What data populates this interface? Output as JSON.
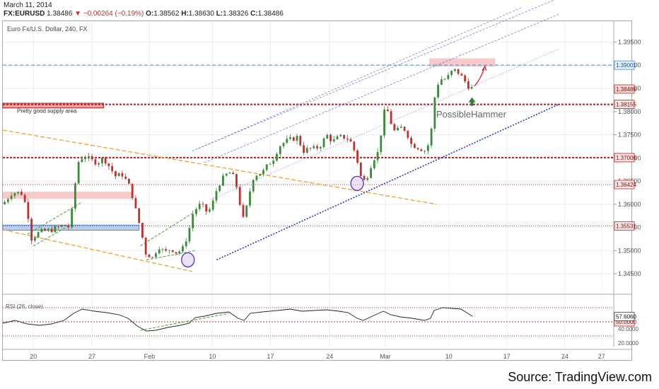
{
  "header": {
    "date": "March 11, 2014",
    "symbol": "FX:EURUSD",
    "last": "1.38486",
    "change": "▼ −0.00264 (−0.19%)",
    "o_label": "O:",
    "o": "1.38562",
    "h_label": "H:",
    "h": "1.38630",
    "l_label": "L:",
    "l": "1.38326",
    "c_label": "C:",
    "c": "1.38486"
  },
  "chart_title": "Euro Fx/U.S. Dollar, 240, FX",
  "source_label": "Source: ",
  "source_site": "TradingView.com",
  "colors": {
    "up": "#3a8a3a",
    "down": "#c0312b",
    "resistance": "#b71c1c",
    "blue_level": "#3f87d9",
    "trend_orange": "#f0a030",
    "trend_blue": "#2a35c4",
    "channel": "#6a6ae0",
    "grid": "#eeeeee"
  },
  "chart_data": {
    "type": "candlestick",
    "ylim": [
      1.3415,
      1.3995
    ],
    "xlim": [
      0,
      100
    ],
    "y_ticks": [
      1.345,
      1.35,
      1.355,
      1.36,
      1.365,
      1.37,
      1.375,
      1.38,
      1.385,
      1.39,
      1.395
    ],
    "y_tick_labels": [
      "1.34500",
      "1.35000",
      "1.35500",
      "1.36000",
      "1.36500",
      "1.37000",
      "1.37500",
      "1.38000",
      "1.38500",
      "1.39000",
      "1.39500"
    ],
    "x_ticks": [
      {
        "label": "20",
        "x": 5.0
      },
      {
        "label": "27",
        "x": 14.6
      },
      {
        "label": "Feb",
        "x": 24.0
      },
      {
        "label": "10",
        "x": 34.3
      },
      {
        "label": "17",
        "x": 43.8
      },
      {
        "label": "24",
        "x": 53.5
      },
      {
        "label": "Mar",
        "x": 62.6
      },
      {
        "label": "10",
        "x": 73.0
      },
      {
        "label": "17",
        "x": 82.5
      },
      {
        "label": "24",
        "x": 92.0
      },
      {
        "label": "27",
        "x": 98.0
      }
    ],
    "close_path": [
      [
        0.0,
        1.36
      ],
      [
        1.5,
        1.3625
      ],
      [
        3.0,
        1.3625
      ],
      [
        4.0,
        1.359
      ],
      [
        4.6,
        1.3525
      ],
      [
        6.0,
        1.354
      ],
      [
        8.0,
        1.3545
      ],
      [
        10.0,
        1.3555
      ],
      [
        11.0,
        1.355
      ],
      [
        11.6,
        1.362
      ],
      [
        12.3,
        1.369
      ],
      [
        13.2,
        1.3705
      ],
      [
        14.4,
        1.3695
      ],
      [
        15.5,
        1.369
      ],
      [
        16.5,
        1.37
      ],
      [
        17.5,
        1.368
      ],
      [
        18.5,
        1.366
      ],
      [
        19.5,
        1.3665
      ],
      [
        20.5,
        1.3645
      ],
      [
        21.0,
        1.363
      ],
      [
        21.6,
        1.3595
      ],
      [
        22.4,
        1.3555
      ],
      [
        23.4,
        1.3495
      ],
      [
        24.5,
        1.3485
      ],
      [
        25.5,
        1.351
      ],
      [
        26.5,
        1.3495
      ],
      [
        27.5,
        1.3505
      ],
      [
        28.5,
        1.3495
      ],
      [
        29.5,
        1.3505
      ],
      [
        30.4,
        1.354
      ],
      [
        31.2,
        1.3585
      ],
      [
        32.4,
        1.36
      ],
      [
        33.6,
        1.358
      ],
      [
        34.4,
        1.3605
      ],
      [
        35.2,
        1.364
      ],
      [
        36.0,
        1.3655
      ],
      [
        37.0,
        1.367
      ],
      [
        38.0,
        1.3655
      ],
      [
        38.9,
        1.3595
      ],
      [
        39.4,
        1.3565
      ],
      [
        40.2,
        1.361
      ],
      [
        40.8,
        1.3655
      ],
      [
        41.6,
        1.3665
      ],
      [
        42.6,
        1.367
      ],
      [
        43.4,
        1.3685
      ],
      [
        44.4,
        1.37
      ],
      [
        45.2,
        1.3725
      ],
      [
        46.2,
        1.3735
      ],
      [
        47.2,
        1.374
      ],
      [
        48.2,
        1.3745
      ],
      [
        49.2,
        1.3715
      ],
      [
        50.2,
        1.372
      ],
      [
        51.2,
        1.372
      ],
      [
        52.2,
        1.373
      ],
      [
        53.0,
        1.375
      ],
      [
        54.0,
        1.3735
      ],
      [
        55.0,
        1.3745
      ],
      [
        56.2,
        1.3745
      ],
      [
        57.2,
        1.373
      ],
      [
        58.0,
        1.3695
      ],
      [
        58.6,
        1.366
      ],
      [
        59.2,
        1.365
      ],
      [
        59.8,
        1.3665
      ],
      [
        60.4,
        1.369
      ],
      [
        61.0,
        1.3705
      ],
      [
        61.6,
        1.3715
      ],
      [
        62.2,
        1.379
      ],
      [
        62.8,
        1.381
      ],
      [
        63.4,
        1.378
      ],
      [
        64.2,
        1.3755
      ],
      [
        65.2,
        1.3765
      ],
      [
        66.0,
        1.376
      ],
      [
        66.8,
        1.373
      ],
      [
        67.6,
        1.3725
      ],
      [
        68.4,
        1.372
      ],
      [
        69.2,
        1.3715
      ],
      [
        70.0,
        1.374
      ],
      [
        70.6,
        1.3825
      ],
      [
        71.2,
        1.386
      ],
      [
        71.8,
        1.387
      ],
      [
        72.6,
        1.387
      ],
      [
        73.4,
        1.3885
      ],
      [
        74.2,
        1.389
      ],
      [
        74.8,
        1.388
      ],
      [
        75.4,
        1.387
      ],
      [
        76.2,
        1.3855
      ],
      [
        76.9,
        1.3849
      ]
    ],
    "channel": {
      "lower": [
        [
          35.0,
          1.348
        ],
        [
          91.0,
          1.38155
        ]
      ],
      "mid1": [
        [
          34.0,
          1.361
        ],
        [
          91.0,
          1.3935
        ]
      ],
      "mid2": [
        [
          33.0,
          1.369
        ],
        [
          91.0,
          1.401
        ]
      ],
      "upper": [
        [
          31.0,
          1.3715
        ],
        [
          91.0,
          1.4045
        ]
      ],
      "upper2": [
        [
          32.0,
          1.372
        ],
        [
          85.0,
          1.4025
        ]
      ]
    },
    "orange_upper": [
      [
        0.0,
        1.376
      ],
      [
        71.0,
        1.36
      ]
    ],
    "orange_lower": [
      [
        0.0,
        1.3545
      ],
      [
        31.0,
        1.3455
      ]
    ],
    "horizontal_levels": [
      {
        "name": "resistance-1.39001",
        "y": 1.39001,
        "label": "1.39001",
        "color": "#3f87d9",
        "style": "dashed"
      },
      {
        "name": "last-price",
        "y": 1.38486,
        "label": "1.38486",
        "color": "#c0312b",
        "style": "tag"
      },
      {
        "name": "supply-1.38155",
        "y": 1.38155,
        "label": "1.38155",
        "color": "#b71c1c",
        "style": "thick-dotted"
      },
      {
        "name": "level-1.37006",
        "y": 1.37006,
        "label": "1.37006",
        "color": "#b71c1c",
        "style": "thick-dotted"
      },
      {
        "name": "level-1.36424",
        "y": 1.36424,
        "label": "1.36424",
        "color": "#c0312b",
        "style": "thin-dotted"
      },
      {
        "name": "level-1.35531",
        "y": 1.35531,
        "label": "1.35531",
        "color": "#c0312b",
        "style": "thin-dotted"
      }
    ],
    "zones": [
      {
        "name": "supply-zone-left",
        "x": [
          0,
          16.5
        ],
        "y": [
          1.3808,
          1.3818
        ],
        "color": "#f1a0a0"
      },
      {
        "name": "pink-zone-left",
        "x": [
          0,
          21.2
        ],
        "y": [
          1.3612,
          1.3627
        ],
        "color": "#f7c6c6"
      },
      {
        "name": "blue-zone-left",
        "x": [
          0,
          22.3
        ],
        "y": [
          1.3544,
          1.3555
        ],
        "color": "#b7cdee"
      },
      {
        "name": "pink-zone-top",
        "x": [
          69.8,
          80.6
        ],
        "y": [
          1.3897,
          1.3915
        ],
        "color": "#f7c6c6"
      }
    ],
    "green_channel_1": [
      [
        [
          4.0,
          1.3535
        ],
        [
          13.0,
          1.3605
        ]
      ],
      [
        [
          5.0,
          1.351
        ],
        [
          11.0,
          1.3555
        ]
      ]
    ],
    "green_channel_2": [
      [
        [
          22.5,
          1.351
        ],
        [
          31.0,
          1.358
        ]
      ],
      [
        [
          23.5,
          1.348
        ],
        [
          31.5,
          1.35
        ]
      ]
    ],
    "circles": [
      [
        30.3,
        1.348
      ],
      [
        58.0,
        1.3645
      ]
    ],
    "annotations": {
      "supply_label": "Pretty good supply area",
      "hammer_label": "PossibleHammer"
    },
    "rsi": {
      "title": "RSI (28, close)",
      "ylim": [
        15,
        85
      ],
      "ticks": [
        20.0,
        40.0
      ],
      "tick_labels": [
        "20.0000",
        "40.0000"
      ],
      "last": "57.6060",
      "mid": "50.0000",
      "levels": [
        70,
        50,
        30
      ],
      "path": [
        [
          0,
          48
        ],
        [
          2,
          52
        ],
        [
          4,
          47
        ],
        [
          6,
          45
        ],
        [
          8,
          47
        ],
        [
          10,
          52
        ],
        [
          11.6,
          62
        ],
        [
          13,
          68
        ],
        [
          15,
          65
        ],
        [
          17,
          63
        ],
        [
          19,
          60
        ],
        [
          20.5,
          55
        ],
        [
          22,
          44
        ],
        [
          23.5,
          37
        ],
        [
          25,
          38
        ],
        [
          27,
          42
        ],
        [
          29,
          45
        ],
        [
          30.5,
          48
        ],
        [
          31.5,
          56
        ],
        [
          33,
          58
        ],
        [
          35,
          62
        ],
        [
          37,
          64
        ],
        [
          38.5,
          55
        ],
        [
          39.5,
          52
        ],
        [
          40.5,
          62
        ],
        [
          42.5,
          64
        ],
        [
          45,
          66
        ],
        [
          47,
          68
        ],
        [
          49,
          65
        ],
        [
          51,
          66
        ],
        [
          53,
          67
        ],
        [
          55,
          65
        ],
        [
          56.5,
          63
        ],
        [
          58,
          55
        ],
        [
          59,
          52
        ],
        [
          60.5,
          58
        ],
        [
          62.3,
          65
        ],
        [
          63.5,
          60
        ],
        [
          65,
          57
        ],
        [
          67,
          55
        ],
        [
          69,
          52
        ],
        [
          70,
          55
        ],
        [
          70.6,
          66
        ],
        [
          72,
          70
        ],
        [
          73.5,
          69
        ],
        [
          75,
          68
        ],
        [
          76.9,
          57.6
        ]
      ]
    }
  }
}
